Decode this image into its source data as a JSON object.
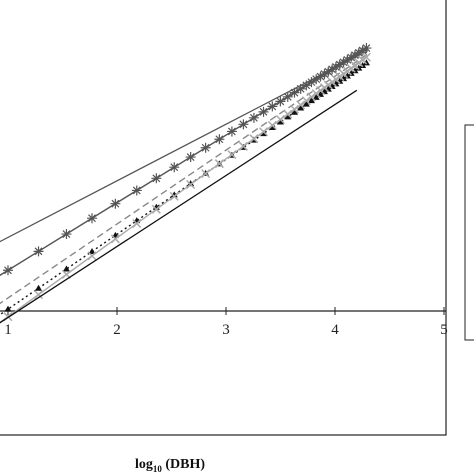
{
  "chart_data": {
    "type": "line",
    "title": "",
    "xlabel": {
      "main": "log",
      "sub": "10",
      "rest": " (DBH)"
    },
    "ylabel": "",
    "xlim": [
      0.9,
      5.0
    ],
    "ylim": [
      -1.1,
      2.65
    ],
    "x_ticks": [
      "1",
      "2",
      "3",
      "4",
      "5"
    ],
    "x_tick_values": [
      1,
      2,
      3,
      4,
      5
    ],
    "grid": false,
    "legend": "right (cropped)",
    "series": [
      {
        "style": "solid",
        "color": "#555555",
        "marker": "none",
        "x": [
          0.9,
          4.3
        ],
        "y": [
          0.6,
          2.3
        ]
      },
      {
        "style": "solid",
        "color": "#555555",
        "marker": "asterisk",
        "x": [
          0.9,
          4.3
        ],
        "y": [
          0.3,
          2.33
        ]
      },
      {
        "style": "dashed",
        "color": "#888888",
        "marker": "none",
        "x": [
          0.9,
          4.3
        ],
        "y": [
          0.05,
          2.27
        ]
      },
      {
        "style": "dotted",
        "color": "#111111",
        "marker": "triangle",
        "x": [
          0.9,
          4.3
        ],
        "y": [
          -0.05,
          2.2
        ]
      },
      {
        "style": "solid",
        "color": "#aaaaaa",
        "marker": "cross",
        "x": [
          0.9,
          4.3
        ],
        "y": [
          -0.12,
          2.25
        ]
      },
      {
        "style": "solid",
        "color": "#111111",
        "marker": "none",
        "x": [
          0.9,
          4.2
        ],
        "y": [
          -0.12,
          1.95
        ]
      }
    ]
  }
}
